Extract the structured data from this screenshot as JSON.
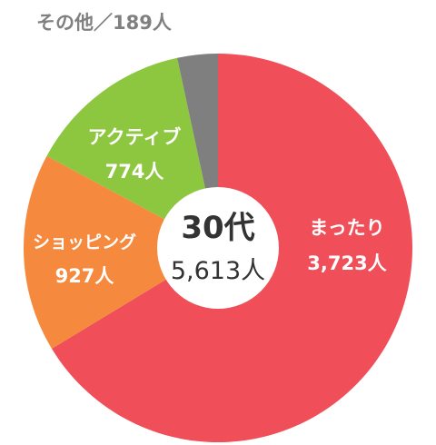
{
  "chart_data": {
    "type": "pie",
    "style": "donut",
    "center_title": "30代",
    "center_total": "5,613人",
    "slices": [
      {
        "name": "まったり",
        "value": 3723,
        "value_label": "3,723人",
        "color": "#f04e58"
      },
      {
        "name": "ショッピング",
        "value": 927,
        "value_label": "927人",
        "color": "#f58a3e"
      },
      {
        "name": "アクティブ",
        "value": 774,
        "value_label": "774人",
        "color": "#8dc63f"
      },
      {
        "name": "その他",
        "value": 189,
        "value_label": "189人",
        "color": "#7f7f7f"
      }
    ],
    "outside_label": "その他／189人"
  }
}
